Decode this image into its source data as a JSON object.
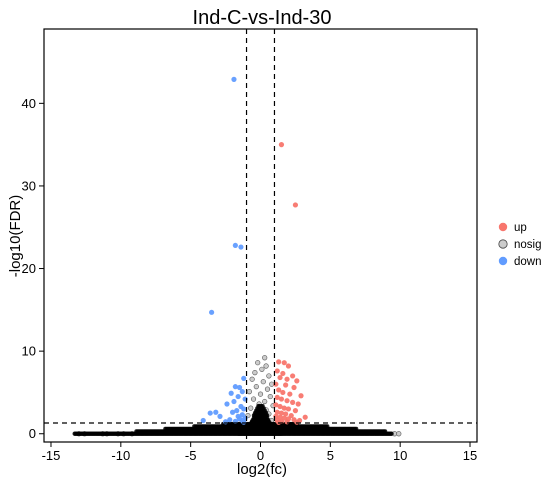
{
  "chart_data": {
    "type": "scatter",
    "title": "Ind-C-vs-Ind-30",
    "xlabel": "log2(fc)",
    "ylabel": "-log10(FDR)",
    "xlim": [
      -15.5,
      15.5
    ],
    "ylim": [
      -1,
      49
    ],
    "x_ticks": [
      -15,
      -10,
      -5,
      0,
      5,
      10,
      15
    ],
    "y_ticks": [
      0,
      10,
      20,
      30,
      40
    ],
    "x_tick_labels": [
      "-15",
      "-10",
      "-5",
      "0",
      "5",
      "10",
      "15"
    ],
    "y_tick_labels": [
      "0",
      "10",
      "20",
      "30",
      "40"
    ],
    "thresholds": {
      "log2fc": [
        -1,
        1
      ],
      "neg_log10_fdr": 1.3
    },
    "legend": {
      "position": "right",
      "entries": [
        "up",
        "nosig",
        "down"
      ]
    },
    "grid": false,
    "colors": {
      "up": "#f8766d",
      "nosig": "#999999",
      "down": "#619cff",
      "nosig_dense": "#000000"
    },
    "series": [
      {
        "name": "up",
        "points": [
          [
            1.5,
            35.0
          ],
          [
            2.5,
            27.7
          ],
          [
            1.3,
            8.7
          ],
          [
            1.7,
            8.6
          ],
          [
            2.0,
            8.2
          ],
          [
            1.2,
            7.6
          ],
          [
            1.6,
            7.3
          ],
          [
            2.3,
            7.0
          ],
          [
            1.4,
            6.8
          ],
          [
            1.9,
            6.6
          ],
          [
            2.6,
            6.4
          ],
          [
            1.1,
            6.0
          ],
          [
            1.8,
            5.9
          ],
          [
            2.4,
            5.6
          ],
          [
            1.3,
            5.3
          ],
          [
            1.6,
            5.0
          ],
          [
            2.1,
            4.8
          ],
          [
            2.9,
            4.6
          ],
          [
            1.2,
            4.4
          ],
          [
            1.5,
            4.2
          ],
          [
            1.9,
            4.0
          ],
          [
            2.3,
            3.8
          ],
          [
            2.7,
            3.6
          ],
          [
            1.1,
            3.5
          ],
          [
            1.4,
            3.3
          ],
          [
            1.7,
            3.1
          ],
          [
            2.0,
            3.0
          ],
          [
            2.5,
            2.8
          ],
          [
            1.2,
            2.6
          ],
          [
            1.5,
            2.5
          ],
          [
            1.8,
            2.4
          ],
          [
            2.2,
            2.2
          ],
          [
            1.1,
            2.1
          ],
          [
            1.4,
            2.0
          ],
          [
            1.7,
            1.9
          ],
          [
            2.0,
            1.8
          ],
          [
            2.4,
            1.7
          ],
          [
            1.2,
            1.6
          ],
          [
            1.5,
            1.5
          ],
          [
            1.9,
            1.45
          ],
          [
            2.6,
            1.4
          ],
          [
            1.3,
            1.38
          ],
          [
            3.2,
            2.0
          ],
          [
            2.8,
            1.6
          ]
        ]
      },
      {
        "name": "nosig",
        "points": [
          [
            -13.0,
            0.0
          ],
          [
            -12.6,
            0.0
          ],
          [
            -11.3,
            0.0
          ],
          [
            -11.0,
            0.0
          ],
          [
            -10.2,
            0.0
          ],
          [
            -9.8,
            0.0
          ],
          [
            -9.2,
            0.0
          ],
          [
            9.6,
            0.0
          ],
          [
            9.9,
            0.0
          ],
          [
            0.3,
            9.2
          ],
          [
            -0.2,
            8.6
          ],
          [
            0.4,
            8.2
          ],
          [
            0.1,
            7.8
          ],
          [
            -0.4,
            7.4
          ],
          [
            0.6,
            7.0
          ],
          [
            -0.6,
            6.6
          ],
          [
            0.2,
            6.3
          ],
          [
            0.8,
            6.0
          ],
          [
            -0.3,
            5.7
          ],
          [
            0.5,
            5.4
          ],
          [
            -0.8,
            5.1
          ],
          [
            0.0,
            4.8
          ],
          [
            0.7,
            4.5
          ],
          [
            -0.5,
            4.2
          ],
          [
            0.3,
            3.9
          ],
          [
            -0.1,
            3.6
          ],
          [
            0.9,
            3.4
          ],
          [
            -0.7,
            3.1
          ],
          [
            0.4,
            2.9
          ],
          [
            -0.2,
            2.6
          ],
          [
            0.6,
            2.4
          ],
          [
            -0.9,
            2.2
          ],
          [
            0.1,
            2.0
          ],
          [
            -0.4,
            1.8
          ],
          [
            0.8,
            1.6
          ],
          [
            0.2,
            1.4
          ],
          [
            -0.6,
            1.3
          ],
          [
            0.5,
            1.2
          ],
          [
            -1.2,
            0.9
          ],
          [
            1.3,
            0.8
          ],
          [
            -1.6,
            0.6
          ],
          [
            1.8,
            0.5
          ],
          [
            -2.1,
            0.4
          ],
          [
            2.3,
            0.3
          ],
          [
            -2.8,
            0.2
          ],
          [
            3.1,
            0.15
          ],
          [
            -3.6,
            0.1
          ],
          [
            4.0,
            0.1
          ]
        ]
      },
      {
        "name": "down",
        "points": [
          [
            -1.9,
            42.9
          ],
          [
            -1.8,
            22.8
          ],
          [
            -1.4,
            22.6
          ],
          [
            -3.5,
            14.7
          ],
          [
            -1.2,
            6.7
          ],
          [
            -1.8,
            5.7
          ],
          [
            -1.5,
            5.6
          ],
          [
            -1.3,
            5.1
          ],
          [
            -2.1,
            4.9
          ],
          [
            -1.6,
            4.5
          ],
          [
            -1.1,
            4.2
          ],
          [
            -1.9,
            3.9
          ],
          [
            -2.4,
            3.6
          ],
          [
            -1.4,
            3.3
          ],
          [
            -1.2,
            3.0
          ],
          [
            -1.7,
            2.8
          ],
          [
            -2.0,
            2.6
          ],
          [
            -3.2,
            2.6
          ],
          [
            -3.6,
            2.5
          ],
          [
            -1.3,
            2.3
          ],
          [
            -1.6,
            2.1
          ],
          [
            -2.9,
            2.1
          ],
          [
            -1.1,
            1.9
          ],
          [
            -1.5,
            1.8
          ],
          [
            -2.2,
            1.7
          ],
          [
            -1.3,
            1.6
          ],
          [
            -1.8,
            1.5
          ],
          [
            -2.5,
            1.45
          ],
          [
            -4.1,
            1.6
          ],
          [
            -1.2,
            1.4
          ]
        ]
      }
    ]
  }
}
